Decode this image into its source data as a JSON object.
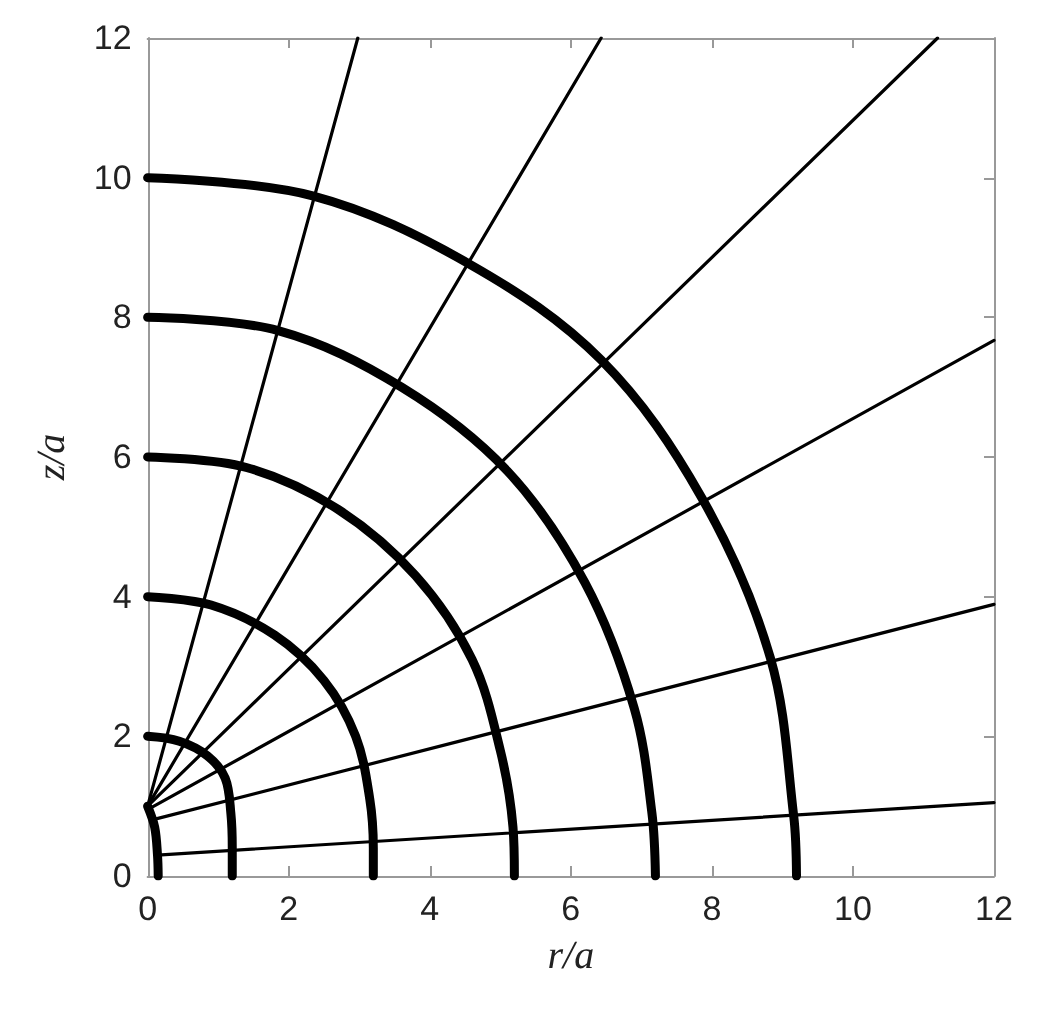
{
  "chart_data": {
    "type": "line",
    "xlabel": "r/a",
    "ylabel": "z/a",
    "xlim": [
      0,
      12
    ],
    "ylim": [
      0,
      12
    ],
    "xticks": [
      0,
      2,
      4,
      6,
      8,
      10,
      12
    ],
    "yticks": [
      0,
      2,
      4,
      6,
      8,
      10,
      12
    ],
    "grid": false,
    "marker": "none",
    "line_style": "solid",
    "series": [
      {
        "color": "#000000",
        "x": [
          0,
          2.34,
          4.55,
          6.43,
          7.86,
          8.83,
          9.16,
          9.2
        ],
        "values": [
          10,
          9.74,
          8.77,
          7.39,
          5.41,
          3.12,
          0.86,
          0
        ]
      },
      {
        "color": "#000000",
        "x": [
          0,
          1.85,
          3.6,
          5.1,
          6.2,
          6.9,
          7.15,
          7.2
        ],
        "values": [
          8,
          7.81,
          7.0,
          5.8,
          4.2,
          2.4,
          0.9,
          0
        ]
      },
      {
        "color": "#000000",
        "x": [
          0,
          1.4,
          2.7,
          3.8,
          4.6,
          5.0,
          5.18,
          5.2
        ],
        "values": [
          6,
          5.85,
          5.25,
          4.3,
          3.1,
          1.8,
          0.7,
          0
        ]
      },
      {
        "color": "#000000",
        "x": [
          0,
          0.9,
          1.8,
          2.5,
          2.95,
          3.15,
          3.2,
          3.2
        ],
        "values": [
          4,
          3.88,
          3.45,
          2.8,
          2.0,
          1.1,
          0.4,
          0
        ]
      },
      {
        "color": "#000000",
        "x": [
          0,
          0.45,
          0.85,
          1.1,
          1.18,
          1.2,
          1.2
        ],
        "values": [
          2,
          1.93,
          1.72,
          1.4,
          0.9,
          0.4,
          0
        ]
      },
      {
        "color": "#000000",
        "x": [
          0,
          0.1,
          0.14,
          0.15
        ],
        "values": [
          1,
          0.7,
          0.3,
          0
        ]
      },
      {
        "color": "#000000",
        "x": [
          0,
          2.98
        ],
        "values": [
          1,
          12
        ]
      },
      {
        "color": "#000000",
        "x": [
          0,
          6.43
        ],
        "values": [
          1,
          12
        ]
      },
      {
        "color": "#000000",
        "x": [
          0,
          11.2
        ],
        "values": [
          1,
          12
        ]
      },
      {
        "color": "#000000",
        "x": [
          0,
          12
        ],
        "values": [
          0.95,
          7.67
        ]
      },
      {
        "color": "#000000",
        "x": [
          0.05,
          12
        ],
        "values": [
          0.8,
          3.89
        ]
      },
      {
        "color": "#000000",
        "x": [
          0.14,
          12
        ],
        "values": [
          0.3,
          1.05
        ]
      }
    ]
  }
}
